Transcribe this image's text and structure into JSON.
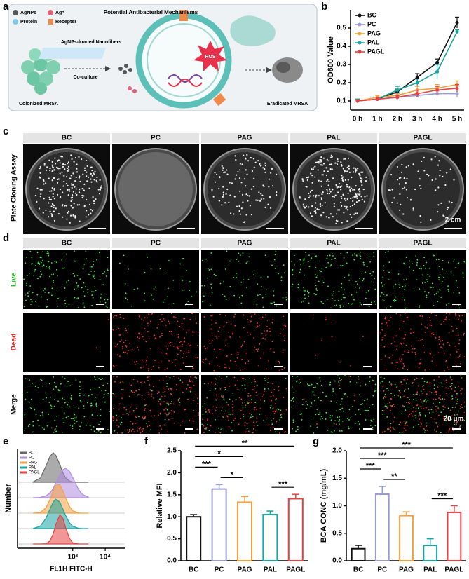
{
  "panel_labels": [
    "a",
    "b",
    "c",
    "d",
    "e",
    "f",
    "g"
  ],
  "schematic": {
    "legend": [
      "AgNPs",
      "Ag⁺",
      "Protein",
      "Recepter"
    ],
    "title": "Potential Antibacterial Mechanisms",
    "fiber_label": "AgNPs-loaded Nanofibers",
    "step_label": "Co-culture",
    "ros": "ROS",
    "start_label": "Colonized MRSA",
    "end_label": "Eradicated MRSA"
  },
  "plate_assay": {
    "row_label": "Plate Cloning Assay",
    "groups": [
      "BC",
      "PC",
      "PAG",
      "PAL",
      "PAGL"
    ],
    "scale_bar": "2 cm"
  },
  "live_dead": {
    "groups": [
      "BC",
      "PC",
      "PAG",
      "PAL",
      "PAGL"
    ],
    "rows": [
      "Live",
      "Dead",
      "Merge"
    ],
    "scale_bar": "20 μm"
  },
  "chart_data": [
    {
      "type": "line",
      "ylabel": "OD600 Value",
      "categories": [
        "0 h",
        "1 h",
        "2 h",
        "3 h",
        "4 h",
        "5 h"
      ],
      "ylim": [
        0.05,
        0.6
      ],
      "yticks": [
        0.1,
        0.2,
        0.3,
        0.4,
        0.5
      ],
      "series": [
        {
          "name": "BC",
          "color": "#111111",
          "values": [
            0.1,
            0.11,
            0.15,
            0.23,
            0.31,
            0.53
          ],
          "errors": [
            0.01,
            0.01,
            0.015,
            0.02,
            0.02,
            0.03
          ]
        },
        {
          "name": "PC",
          "color": "#9b9bd4",
          "values": [
            0.1,
            0.11,
            0.12,
            0.13,
            0.14,
            0.14
          ],
          "errors": [
            0.005,
            0.01,
            0.01,
            0.01,
            0.015,
            0.02
          ]
        },
        {
          "name": "PAG",
          "color": "#f5a03c",
          "values": [
            0.1,
            0.12,
            0.13,
            0.16,
            0.17,
            0.19
          ],
          "errors": [
            0.005,
            0.01,
            0.01,
            0.02,
            0.02,
            0.02
          ]
        },
        {
          "name": "PAL",
          "color": "#1aa3a3",
          "values": [
            0.1,
            0.11,
            0.16,
            0.2,
            0.26,
            0.48
          ],
          "errors": [
            0.01,
            0.01,
            0.02,
            0.02,
            0.04,
            0.01
          ]
        },
        {
          "name": "PAGL",
          "color": "#e84040",
          "values": [
            0.1,
            0.11,
            0.12,
            0.14,
            0.16,
            0.17
          ],
          "errors": [
            0.005,
            0.01,
            0.01,
            0.02,
            0.02,
            0.02
          ]
        }
      ]
    },
    {
      "type": "ridgeline",
      "xlabel": "FL1H FITC-H",
      "ylabel": "Number",
      "log_x": true,
      "xlim": [
        20,
        40000
      ],
      "xticks": [
        {
          "value": 1000,
          "label": "10³"
        },
        {
          "value": 10000,
          "label": "10⁴"
        }
      ],
      "x": [
        60,
        100,
        150,
        200,
        250,
        300,
        400,
        500,
        600,
        800,
        1000,
        1500,
        2000,
        3000
      ],
      "series": [
        {
          "name": "BC",
          "color": "#666666",
          "values": [
            0.01,
            0.14,
            0.55,
            0.88,
            1,
            0.92,
            0.61,
            0.32,
            0.16,
            0.04,
            0.01,
            0,
            0,
            0
          ]
        },
        {
          "name": "PC",
          "color": "#b08ce0",
          "values": [
            0,
            0.01,
            0.06,
            0.16,
            0.31,
            0.49,
            0.77,
            0.95,
            1,
            0.89,
            0.68,
            0.28,
            0.11,
            0.02
          ]
        },
        {
          "name": "PAG",
          "color": "#f5a03c",
          "values": [
            0,
            0.02,
            0.18,
            0.46,
            0.75,
            0.94,
            0.97,
            0.75,
            0.52,
            0.22,
            0.08,
            0.01,
            0,
            0
          ]
        },
        {
          "name": "PAL",
          "color": "#1aa3a3",
          "values": [
            0,
            0.08,
            0.35,
            0.66,
            0.9,
            1,
            0.9,
            0.66,
            0.45,
            0.19,
            0.08,
            0.01,
            0,
            0
          ]
        },
        {
          "name": "PAGL",
          "color": "#e84040",
          "values": [
            0,
            0,
            0.01,
            0.1,
            0.34,
            0.65,
            0.99,
            0.87,
            0.57,
            0.18,
            0.04,
            0,
            0,
            0
          ]
        }
      ]
    },
    {
      "type": "bar",
      "ylabel": "Relative MFI",
      "categories": [
        "BC",
        "PC",
        "PAG",
        "PAL",
        "PAGL"
      ],
      "colors": [
        "#111111",
        "#9b9bd4",
        "#f5a03c",
        "#1aa3a3",
        "#e84040"
      ],
      "values": [
        1.0,
        1.63,
        1.33,
        1.05,
        1.41
      ],
      "errors": [
        0.05,
        0.1,
        0.13,
        0.08,
        0.1
      ],
      "ylim": [
        0,
        2.5
      ],
      "yticks": [
        {
          "value": 0,
          "label": "0.0"
        },
        0.5,
        {
          "value": 1,
          "label": "1.0"
        },
        1.5,
        {
          "value": 2,
          "label": "2.0"
        },
        2.5
      ],
      "significance": [
        {
          "pair": [
            "PC",
            "PAG"
          ],
          "label": "*"
        },
        {
          "pair": [
            "BC",
            "PC"
          ],
          "label": "***"
        },
        {
          "pair": [
            "BC",
            "PAG"
          ],
          "label": "*"
        },
        {
          "pair": [
            "PAL",
            "PAGL"
          ],
          "label": "***"
        },
        {
          "pair": [
            "BC",
            "PAGL"
          ],
          "label": "**"
        }
      ]
    },
    {
      "type": "bar",
      "ylabel": "BCA CONC (mg/mL)",
      "categories": [
        "BC",
        "PC",
        "PAG",
        "PAL",
        "PAGL"
      ],
      "colors": [
        "#111111",
        "#9b9bd4",
        "#f5a03c",
        "#1aa3a3",
        "#e84040"
      ],
      "values": [
        0.22,
        1.21,
        0.82,
        0.28,
        0.88
      ],
      "errors": [
        0.06,
        0.14,
        0.07,
        0.12,
        0.12
      ],
      "ylim": [
        0,
        2.0
      ],
      "yticks": [
        {
          "value": 0,
          "label": "0.0"
        },
        0.5,
        {
          "value": 1,
          "label": "1.0"
        },
        1.5,
        {
          "value": 2,
          "label": "2.0"
        }
      ],
      "significance": [
        {
          "pair": [
            "PC",
            "PAG"
          ],
          "label": "**"
        },
        {
          "pair": [
            "BC",
            "PC"
          ],
          "label": "***"
        },
        {
          "pair": [
            "BC",
            "PAG"
          ],
          "label": "***"
        },
        {
          "pair": [
            "PAL",
            "PAGL"
          ],
          "label": "***"
        },
        {
          "pair": [
            "BC",
            "PAGL"
          ],
          "label": "***"
        }
      ]
    }
  ]
}
